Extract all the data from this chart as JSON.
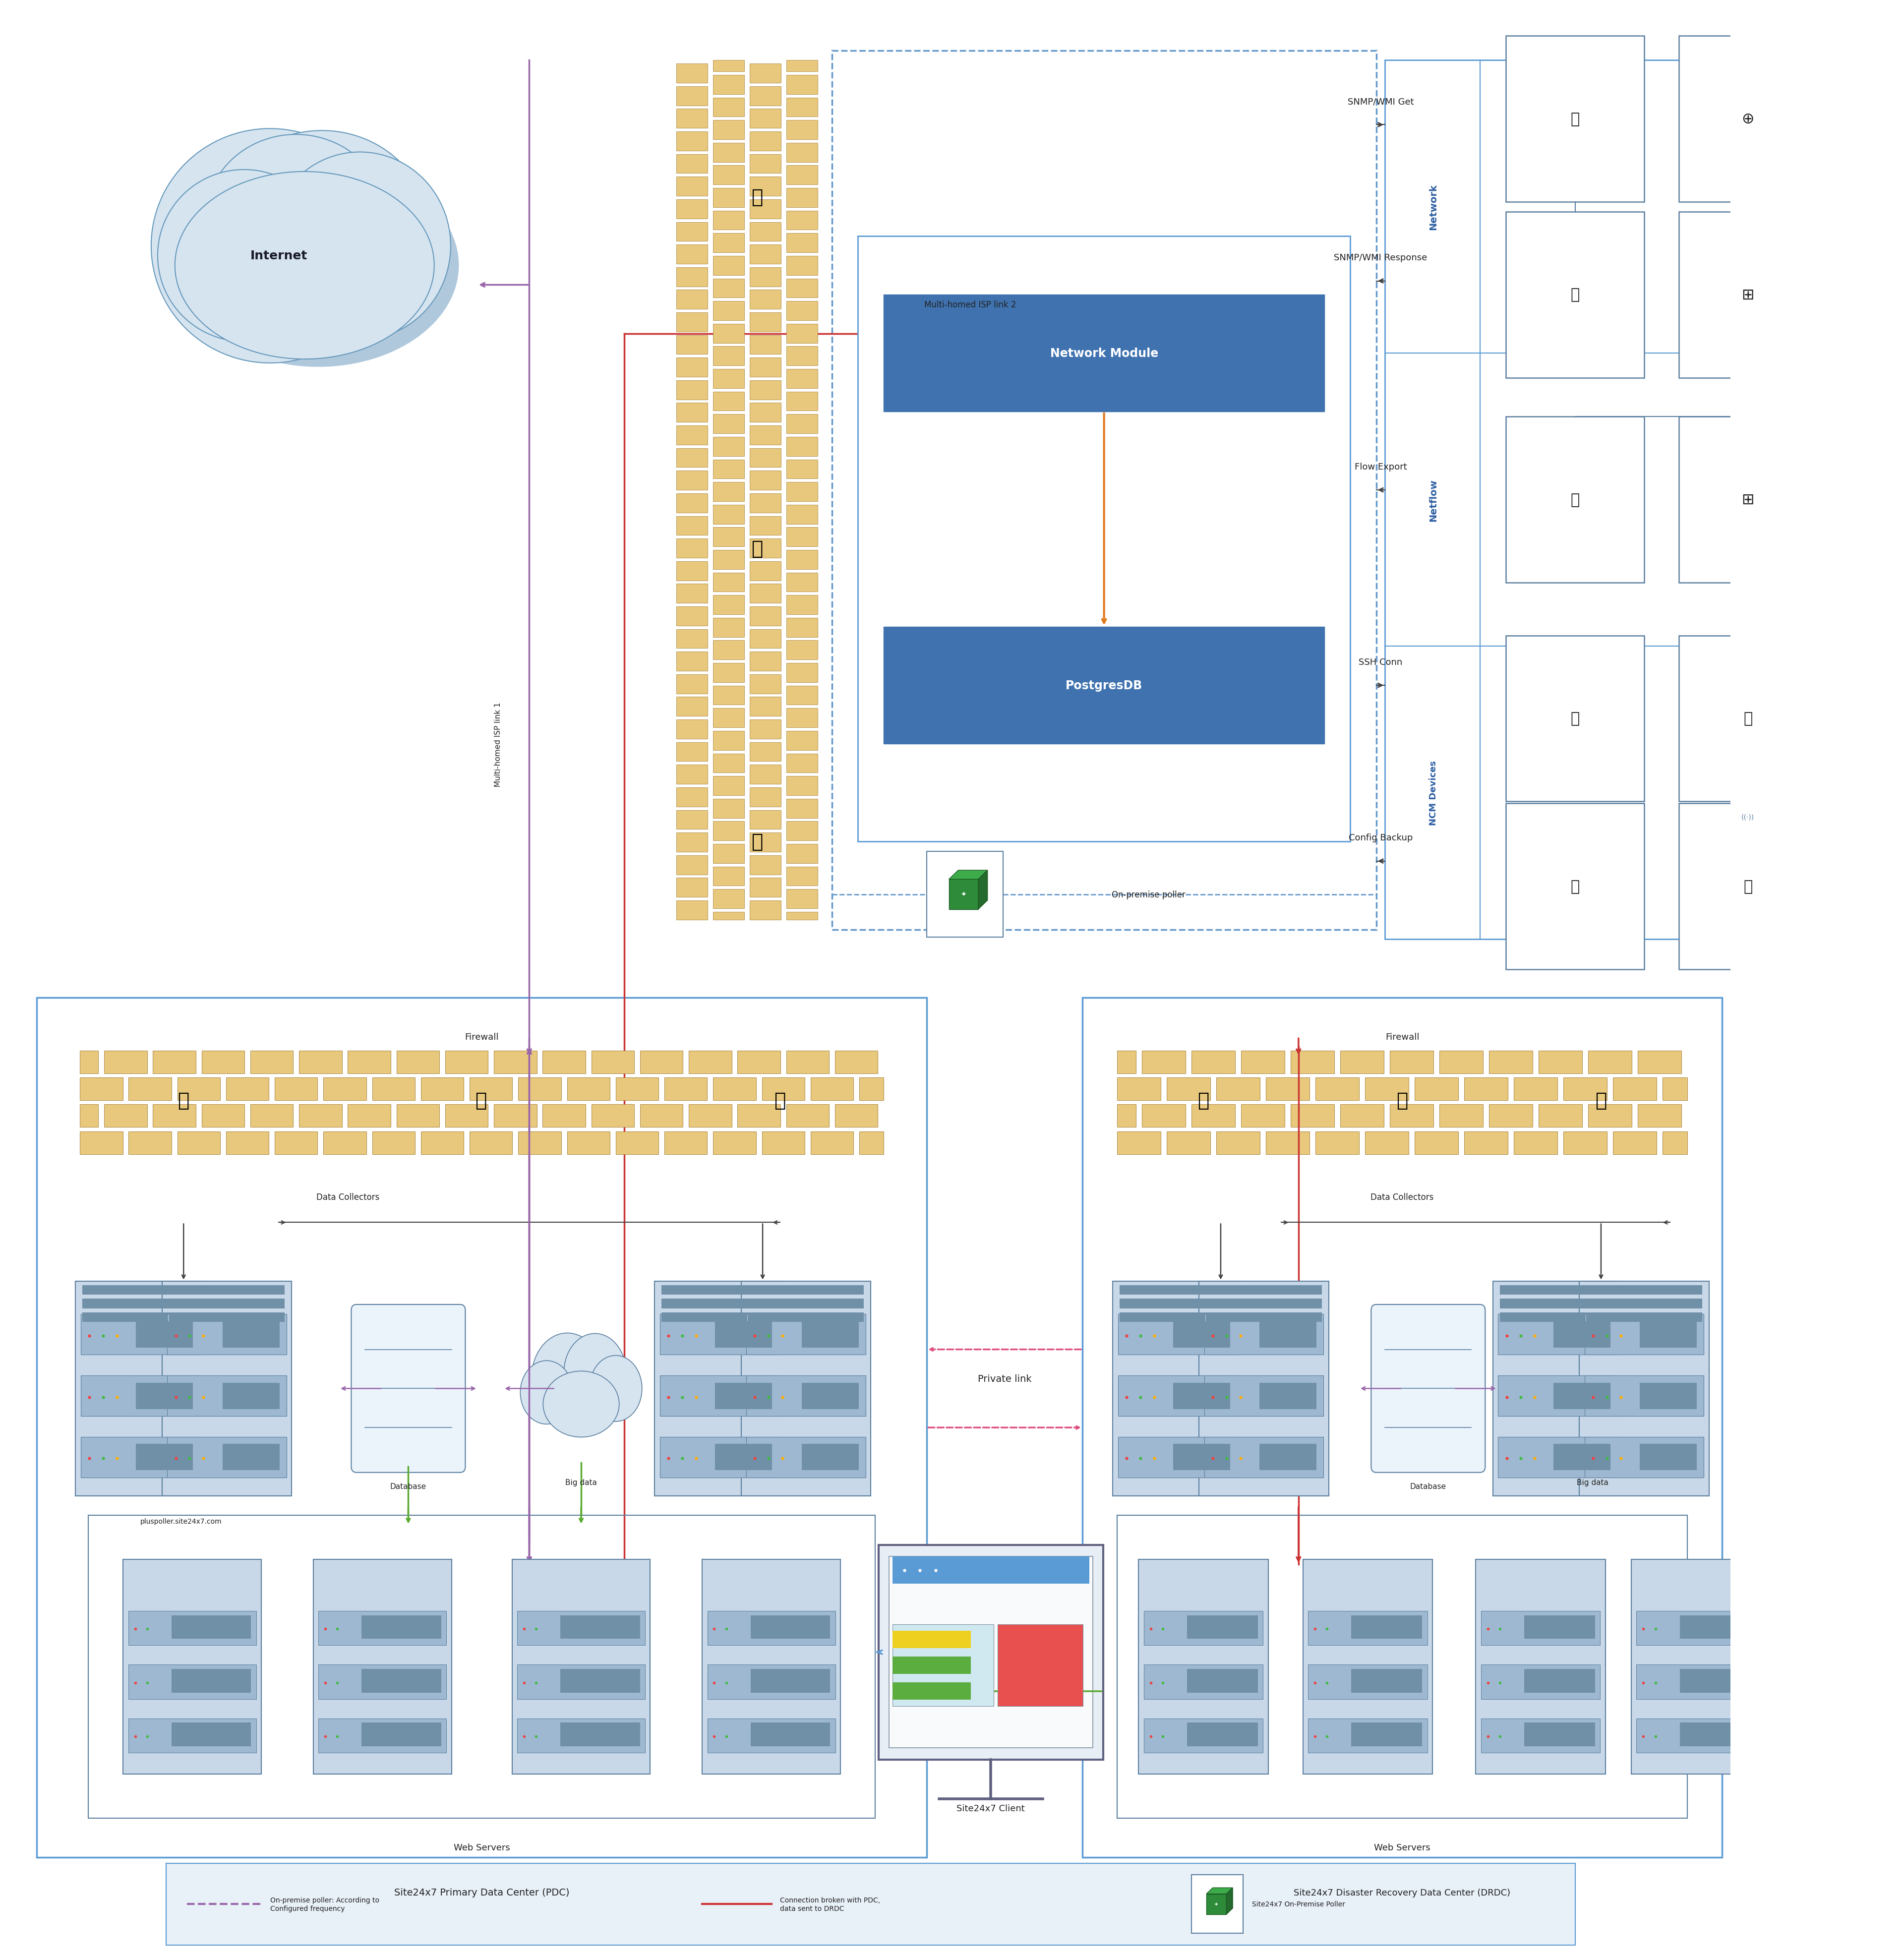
{
  "bg_color": "#ffffff",
  "fig_width": 38.41,
  "fig_height": 39.48,
  "colors": {
    "blue_box": "#3F72AF",
    "light_blue_border": "#5B9BD5",
    "dashed_border": "#6699CC",
    "arrow_dark": "#404040",
    "orange_arrow": "#E07B20",
    "purple_line": "#9966AA",
    "red_line": "#CC3333",
    "green_line": "#5AAA32",
    "pink_dashed": "#E05080",
    "firewall_brick_light": "#E8C87C",
    "firewall_brick_dark": "#C49A40",
    "firewall_outline": "#A07830",
    "section_label": "#2E5FA3",
    "text_dark": "#222222",
    "cloud_fill": "#D6E4F0",
    "cloud_border": "#6699BB",
    "cloud_shadow": "#B0C8DC",
    "legend_bg": "#E8F0F8",
    "device_border": "#5B7FA0",
    "device_bg": "#EBF3FB",
    "server_unit_bg": "#9DB8D0",
    "server_unit_line": "#708090"
  },
  "labels": {
    "internet": "Internet",
    "network_module": "Network Module",
    "postgresdb": "PostgresDB",
    "on_premise_poller": "On-premise poller",
    "network": "Network",
    "netflow": "Netflow",
    "ncm_devices": "NCM Devices",
    "multi_isp1": "Multi-homed ISP link 1",
    "multi_isp2": "Multi-homed ISP link 2",
    "pdc_title": "Site24x7 Primary Data Center (PDC)",
    "drdc_title": "Site24x7 Disaster Recovery Data Center (DRDC)",
    "client_title": "Site24x7 Client",
    "private_link": "Private link",
    "firewall": "Firewall",
    "data_collectors": "Data Collectors",
    "database": "Database",
    "bigdata": "Big data",
    "web_servers": "Web Servers",
    "pluspoller": "pluspoller.site24x7.com",
    "snmp_get": "SNMP/WMI Get",
    "snmp_response": "SNMP/WMI Response",
    "flow_export": "Flow Export",
    "ssh_conn": "SSH Conn",
    "config_backup": "Config Backup",
    "legend1": "On-premise poller: According to\nConfigured frequency",
    "legend2": "Connection broken with PDC,\ndata sent to DRDC",
    "legend3": "Site24x7 On-Premise Poller"
  }
}
